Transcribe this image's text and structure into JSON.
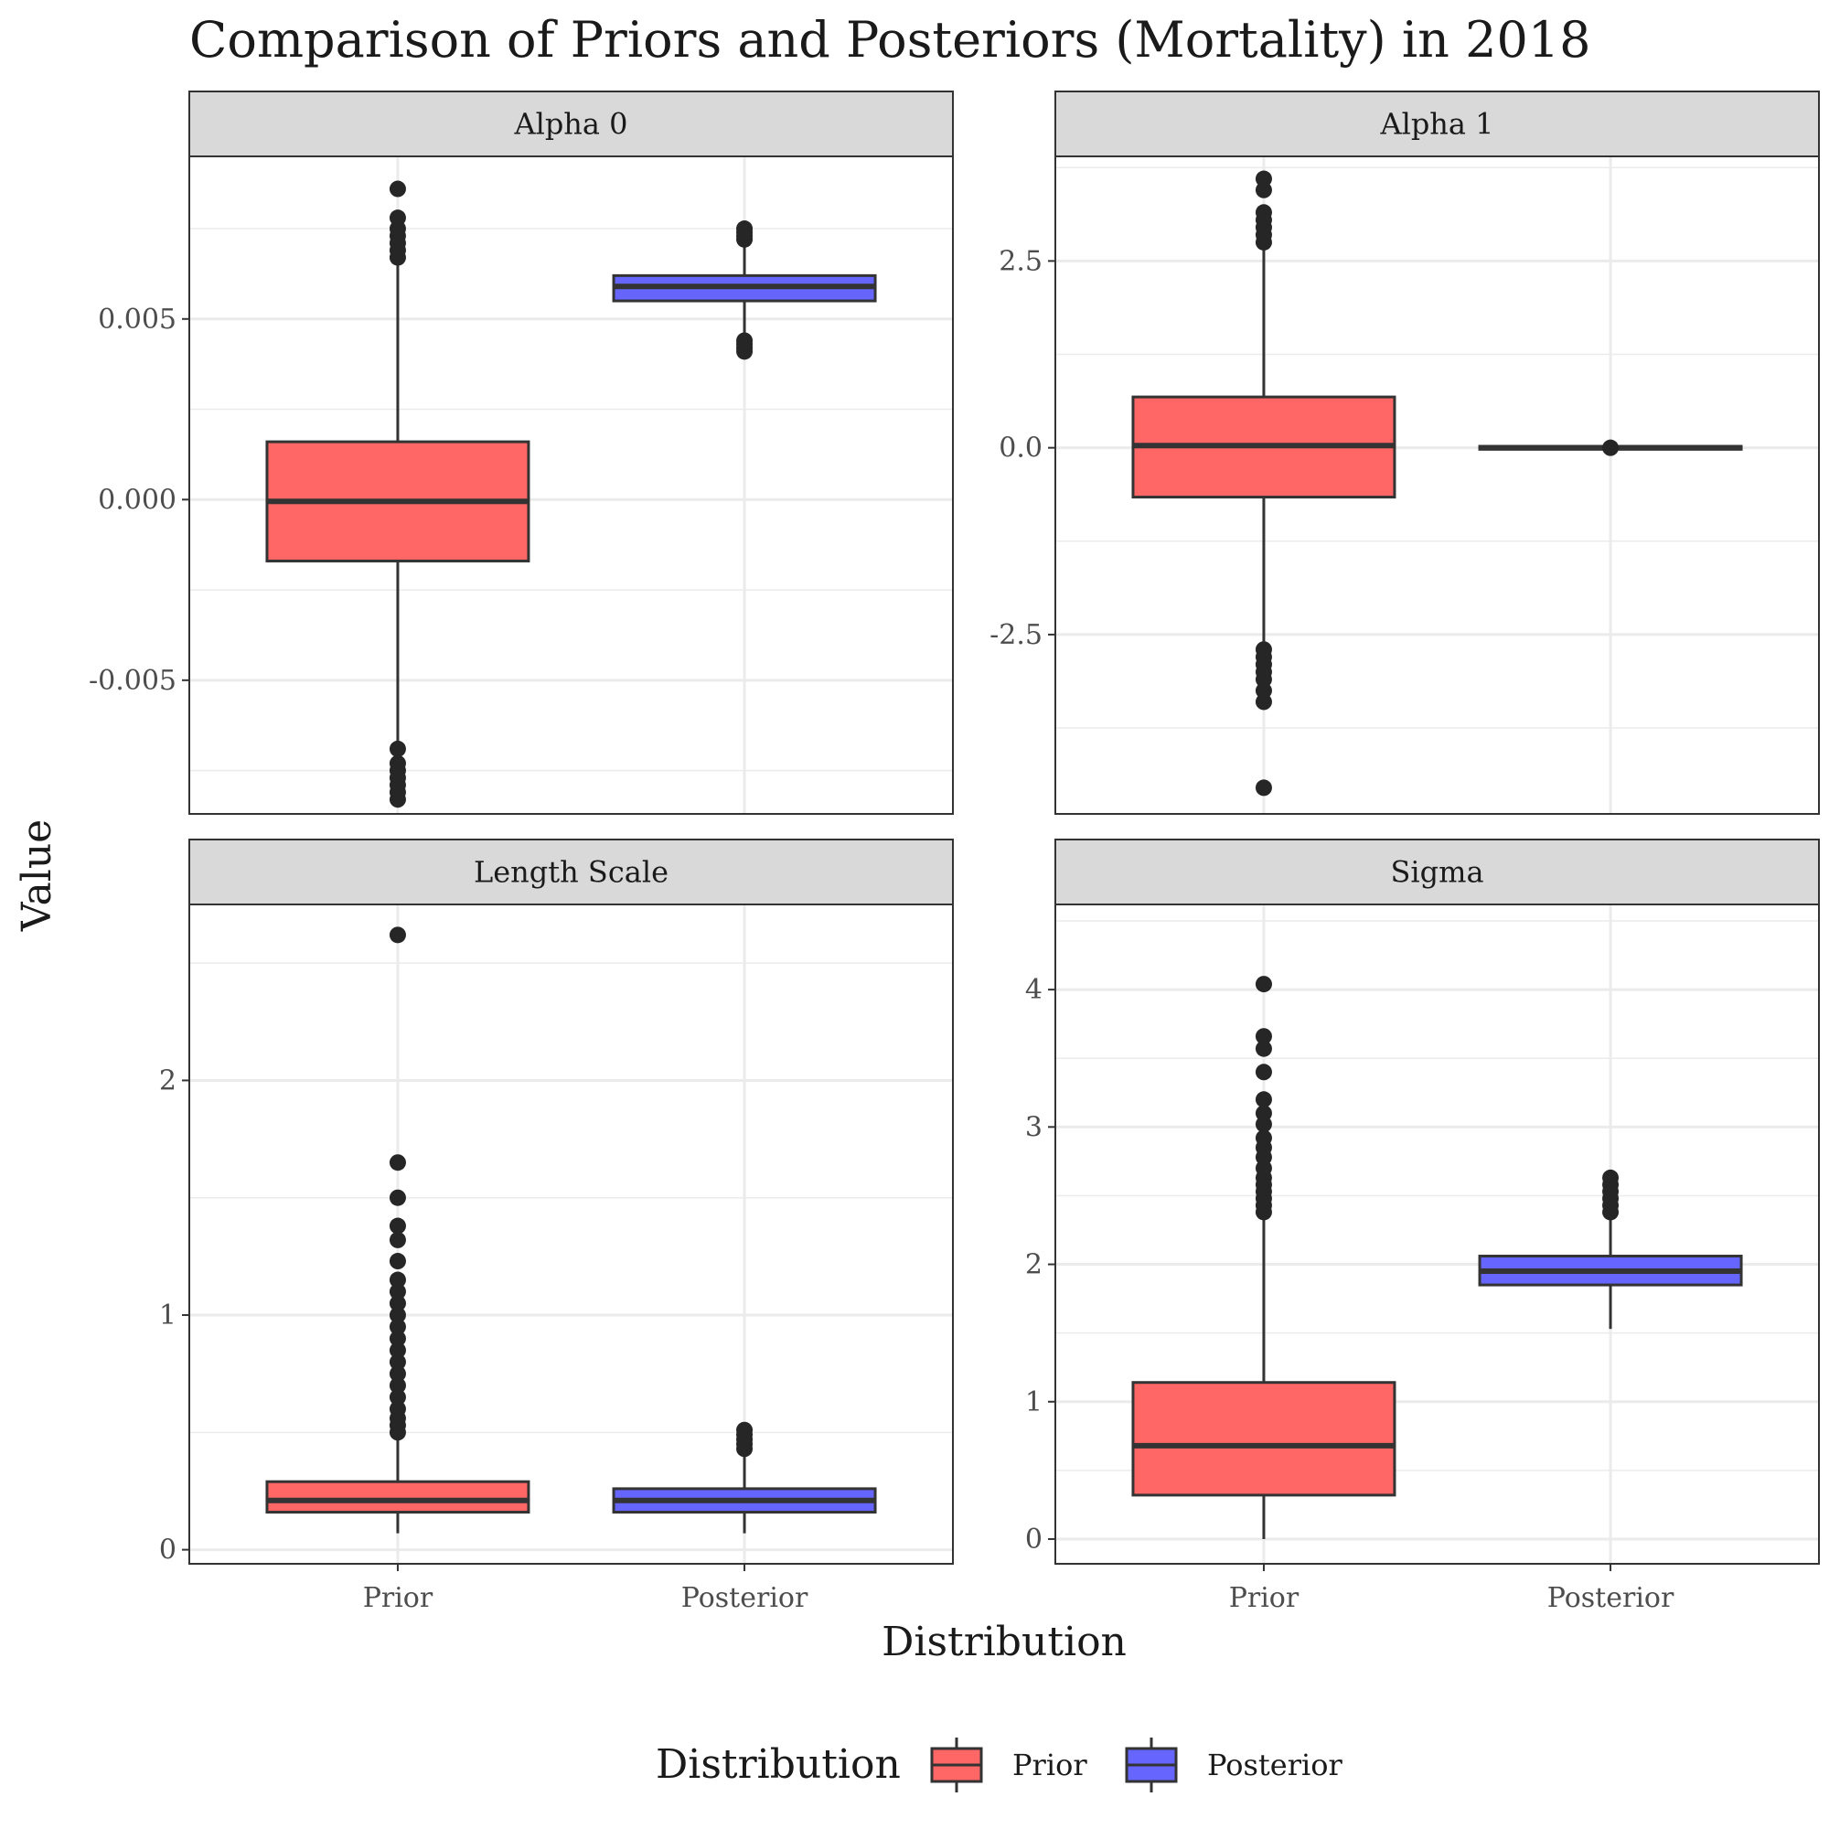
{
  "chart_data": {
    "type": "boxplot",
    "title": "Comparison of Priors and Posteriors (Mortality) in 2018",
    "xlabel": "Distribution",
    "ylabel": "Value",
    "categories": [
      "Prior",
      "Posterior"
    ],
    "legend": {
      "title": "Distribution",
      "position": "bottom",
      "entries": [
        {
          "name": "Prior",
          "color": "#ff6666"
        },
        {
          "name": "Posterior",
          "color": "#6666ff"
        }
      ]
    },
    "grid": true,
    "facets": [
      {
        "name": "Alpha 0",
        "ylim": [
          -0.0087,
          0.0095
        ],
        "yticks": [
          -0.005,
          0.0,
          0.005
        ],
        "ytick_labels": [
          "-0.005",
          "0.000",
          "0.005"
        ],
        "boxes": [
          {
            "category": "Prior",
            "q1": -0.0017,
            "median": -5e-05,
            "q3": 0.0016,
            "whisker_low": -0.0068,
            "whisker_high": 0.0065,
            "outliers": [
              -0.0083,
              -0.0081,
              -0.0079,
              -0.0077,
              -0.0075,
              -0.0073,
              -0.0069,
              0.0067,
              0.0069,
              0.0071,
              0.0073,
              0.0075,
              0.0078,
              0.0086
            ]
          },
          {
            "category": "Posterior",
            "q1": 0.0055,
            "median": 0.0059,
            "q3": 0.0062,
            "whisker_low": 0.0045,
            "whisker_high": 0.0071,
            "outliers": [
              0.0041,
              0.0042,
              0.0043,
              0.0044,
              0.0072,
              0.0073,
              0.0074,
              0.0075
            ]
          }
        ]
      },
      {
        "name": "Alpha 1",
        "ylim": [
          -4.9,
          3.9
        ],
        "yticks": [
          -2.5,
          0.0,
          2.5
        ],
        "ytick_labels": [
          "-2.5",
          "0.0",
          "2.5"
        ],
        "boxes": [
          {
            "category": "Prior",
            "q1": -0.66,
            "median": 0.03,
            "q3": 0.68,
            "whisker_low": -2.65,
            "whisker_high": 2.7,
            "outliers": [
              -4.55,
              -3.4,
              -3.25,
              -3.1,
              -3.0,
              -2.9,
              -2.8,
              -2.7,
              2.75,
              2.85,
              2.95,
              3.05,
              3.15,
              3.45,
              3.6
            ]
          },
          {
            "category": "Posterior",
            "q1": -0.02,
            "median": 0.0,
            "q3": 0.02,
            "whisker_low": -0.03,
            "whisker_high": 0.03,
            "outliers": [
              0.0
            ]
          }
        ]
      },
      {
        "name": "Length Scale",
        "ylim": [
          -0.06,
          2.75
        ],
        "yticks": [
          0,
          1,
          2
        ],
        "ytick_labels": [
          "0",
          "1",
          "2"
        ],
        "boxes": [
          {
            "category": "Prior",
            "q1": 0.16,
            "median": 0.21,
            "q3": 0.29,
            "whisker_low": 0.07,
            "whisker_high": 0.48,
            "outliers": [
              0.5,
              0.53,
              0.56,
              0.6,
              0.65,
              0.7,
              0.75,
              0.8,
              0.85,
              0.9,
              0.95,
              1.0,
              1.05,
              1.1,
              1.15,
              1.23,
              1.32,
              1.38,
              1.5,
              1.65,
              2.62
            ]
          },
          {
            "category": "Posterior",
            "q1": 0.16,
            "median": 0.21,
            "q3": 0.26,
            "whisker_low": 0.07,
            "whisker_high": 0.41,
            "outliers": [
              0.43,
              0.45,
              0.47,
              0.49,
              0.51
            ]
          }
        ]
      },
      {
        "name": "Sigma",
        "ylim": [
          -0.18,
          4.62
        ],
        "yticks": [
          0,
          1,
          2,
          3,
          4
        ],
        "ytick_labels": [
          "0",
          "1",
          "2",
          "3",
          "4"
        ],
        "boxes": [
          {
            "category": "Prior",
            "q1": 0.32,
            "median": 0.68,
            "q3": 1.14,
            "whisker_low": 0.0,
            "whisker_high": 2.35,
            "outliers": [
              2.38,
              2.43,
              2.48,
              2.53,
              2.58,
              2.63,
              2.7,
              2.78,
              2.85,
              2.92,
              3.02,
              3.1,
              3.2,
              3.4,
              3.57,
              3.66,
              4.04
            ]
          },
          {
            "category": "Posterior",
            "q1": 1.85,
            "median": 1.95,
            "q3": 2.06,
            "whisker_low": 1.53,
            "whisker_high": 2.36,
            "outliers": [
              2.38,
              2.43,
              2.48,
              2.53,
              2.58,
              2.63
            ]
          }
        ]
      }
    ]
  }
}
